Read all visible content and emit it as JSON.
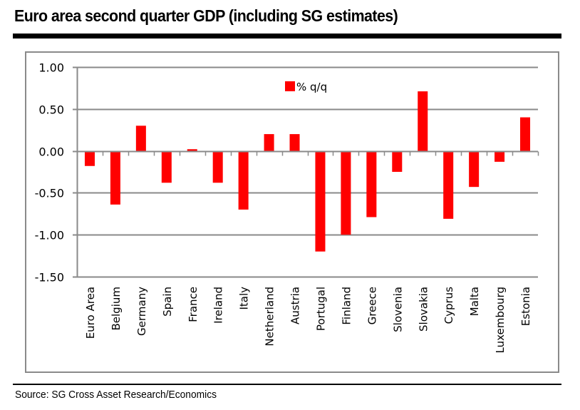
{
  "header": {
    "title": "Euro area second quarter GDP (including SG estimates)"
  },
  "footer": {
    "source": "Source: SG Cross Asset Research/Economics"
  },
  "chart_data": {
    "type": "bar",
    "title": "Euro area second quarter GDP (including SG estimates)",
    "xlabel": "",
    "ylabel": "",
    "ylim": [
      -1.5,
      1.0
    ],
    "yticks": [
      1.0,
      0.5,
      0.0,
      -0.5,
      -1.0,
      -1.5
    ],
    "ytick_labels": [
      "1.00",
      "0.50",
      "0.00",
      "-0.50",
      "-1.00",
      "-1.50"
    ],
    "grid": true,
    "legend": {
      "position": "top-center",
      "entries": [
        "% q/q"
      ]
    },
    "bar_color": "#ff0000",
    "categories": [
      "Euro Area",
      "Belgium",
      "Germany",
      "Spain",
      "France",
      "Ireland",
      "Italy",
      "Netherland",
      "Austria",
      "Portugal",
      "Finland",
      "Greece",
      "Slovenia",
      "Slovakia",
      "Cyprus",
      "Malta",
      "Luxembourg",
      "Estonia"
    ],
    "series": [
      {
        "name": "% q/q",
        "values": [
          -0.18,
          -0.64,
          0.3,
          -0.38,
          0.02,
          -0.38,
          -0.7,
          0.2,
          0.2,
          -1.2,
          -1.0,
          -0.79,
          -0.25,
          0.71,
          -0.81,
          -0.43,
          -0.13,
          0.4
        ]
      }
    ]
  }
}
